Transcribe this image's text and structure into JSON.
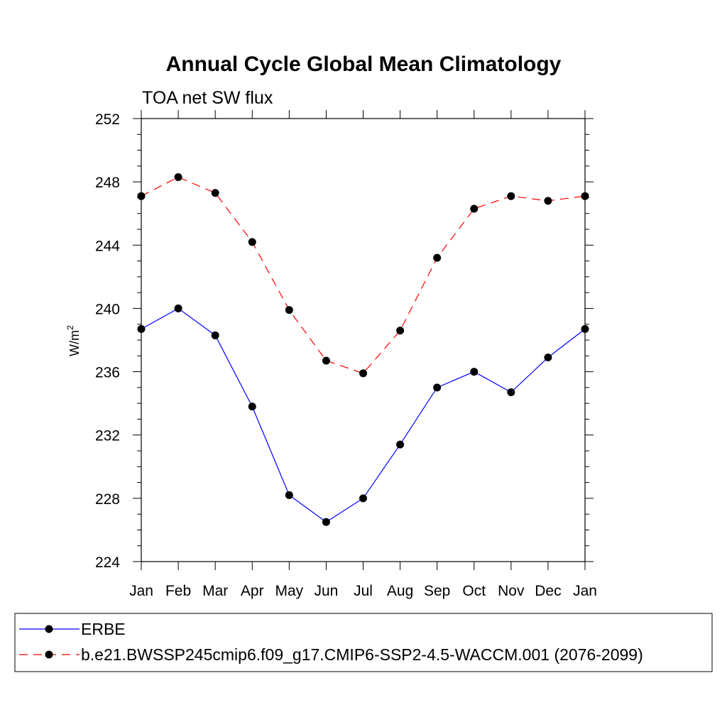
{
  "chart_data": {
    "type": "line",
    "title": "Annual Cycle Global Mean Climatology",
    "subtitle": "TOA net SW flux",
    "ylabel": "W/m",
    "ylabel_sup": "2",
    "xlabel": "",
    "categories": [
      "Jan",
      "Feb",
      "Mar",
      "Apr",
      "May",
      "Jun",
      "Jul",
      "Aug",
      "Sep",
      "Oct",
      "Nov",
      "Dec",
      "Jan"
    ],
    "ylim": [
      224,
      252
    ],
    "yticks": [
      224,
      228,
      232,
      236,
      240,
      244,
      248,
      252
    ],
    "grid": false,
    "legend_position": "bottom",
    "series": [
      {
        "name": "ERBE",
        "color": "#0000ff",
        "style": "solid",
        "values": [
          238.7,
          240.0,
          238.3,
          233.8,
          228.2,
          226.5,
          228.0,
          231.4,
          235.0,
          236.0,
          234.7,
          236.9,
          238.7
        ]
      },
      {
        "name": "b.e21.BWSSP245cmip6.f09_g17.CMIP6-SSP2-4.5-WACCM.001 (2076-2099)",
        "color": "#ff0000",
        "style": "dashed",
        "values": [
          247.1,
          248.3,
          247.3,
          244.2,
          239.9,
          236.7,
          235.9,
          238.6,
          243.2,
          246.3,
          247.1,
          246.8,
          247.1
        ]
      }
    ]
  }
}
